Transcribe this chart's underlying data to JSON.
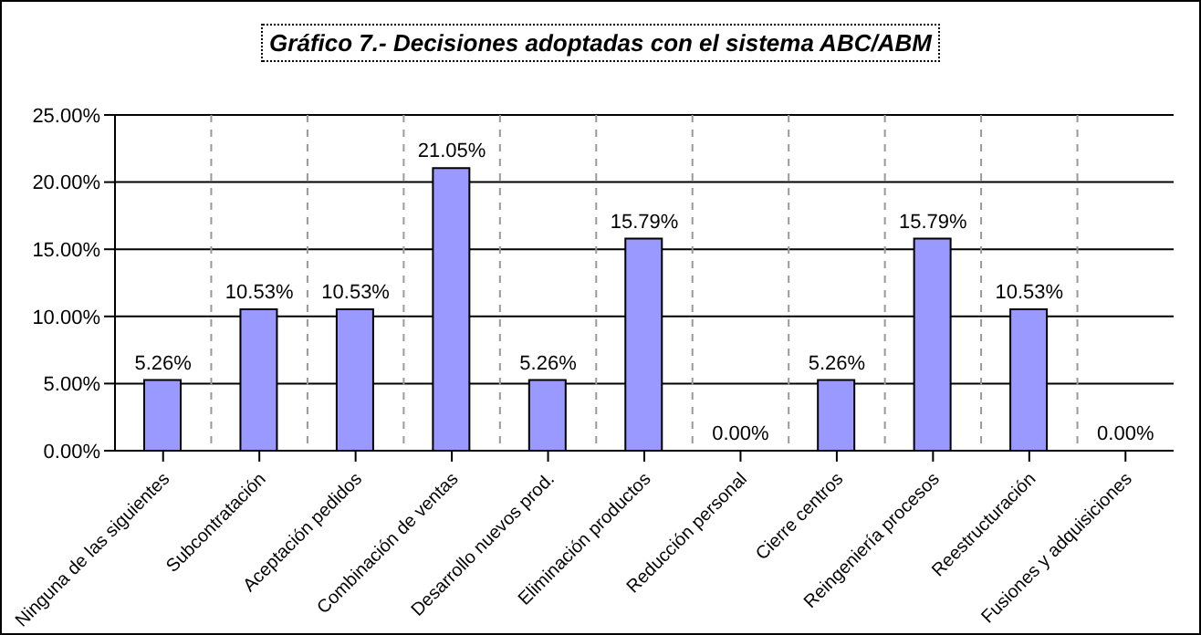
{
  "chart_data": {
    "type": "bar",
    "title": "Gráfico 7.- Decisiones adoptadas con el sistema ABC/ABM",
    "categories": [
      "Ninguna de las siguientes",
      "Subcontratación",
      "Aceptación pedidos",
      "Combinación de ventas",
      "Desarrollo nuevos prod.",
      "Eliminación productos",
      "Reducción personal",
      "Cierre centros",
      "Reingeniería procesos",
      "Reestructuración",
      "Fusiones y adquisiciones"
    ],
    "values": [
      5.26,
      10.53,
      10.53,
      21.05,
      5.26,
      15.79,
      0,
      5.26,
      15.79,
      10.53,
      0
    ],
    "value_labels": [
      "5.26%",
      "10.53%",
      "10.53%",
      "21.05%",
      "5.26%",
      "15.79%",
      "0.00%",
      "5.26%",
      "15.79%",
      "10.53%",
      "0.00%"
    ],
    "color": "#9999ff",
    "ylim": [
      0,
      25
    ],
    "yticks": [
      {
        "value": 0,
        "label": "0.00%"
      },
      {
        "value": 5,
        "label": "5.00%"
      },
      {
        "value": 10,
        "label": "10.00%"
      },
      {
        "value": 15,
        "label": "15.00%"
      },
      {
        "value": 20,
        "label": "20.00%"
      },
      {
        "value": 25,
        "label": "25.00%"
      }
    ],
    "grid": true
  }
}
